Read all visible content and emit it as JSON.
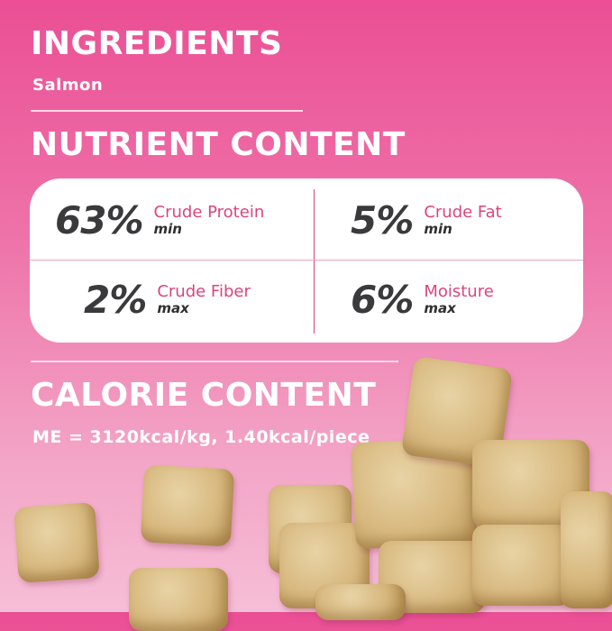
{
  "ingredients": {
    "title": "INGREDIENTS",
    "value": "Salmon"
  },
  "nutrients": {
    "title": "NUTRIENT CONTENT",
    "items": [
      {
        "value": "63%",
        "name": "Crude Protein",
        "qualifier": "min"
      },
      {
        "value": "5%",
        "name": "Crude Fat",
        "qualifier": "min"
      },
      {
        "value": "2%",
        "name": "Crude Fiber",
        "qualifier": "max"
      },
      {
        "value": "6%",
        "name": "Moisture",
        "qualifier": "max"
      }
    ]
  },
  "calorie": {
    "title": "CALORIE CONTENT",
    "value": "ME = 3120kcal/kg, 1.40kcal/piece"
  },
  "colors": {
    "background": "#eb4f95",
    "accent": "#d9467f",
    "number": "#3a3a3c"
  }
}
